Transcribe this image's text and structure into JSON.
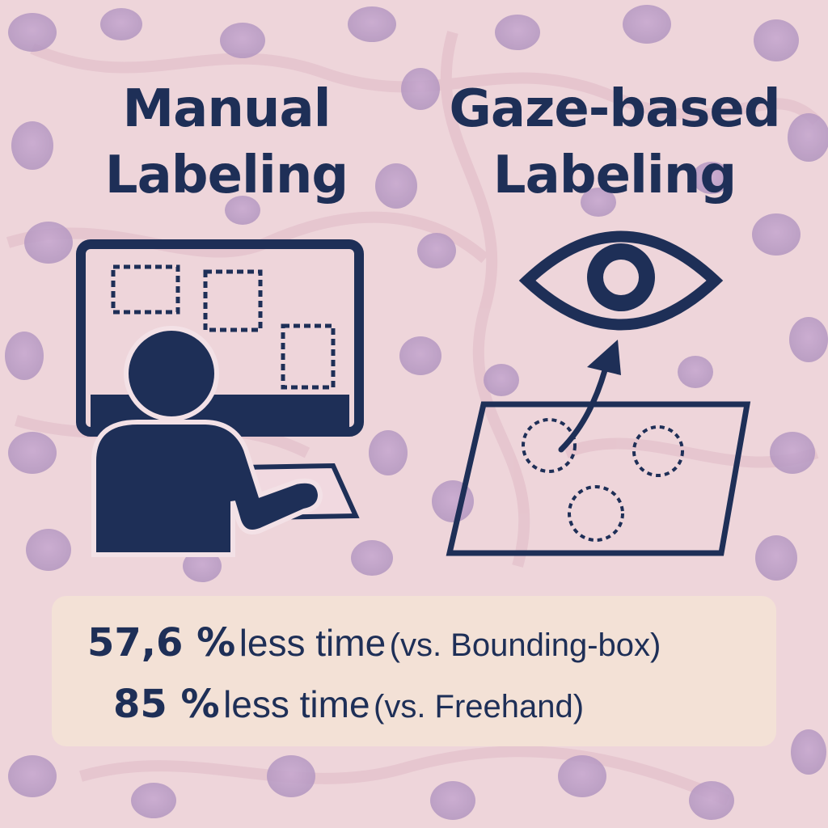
{
  "titles": {
    "manual": [
      "Manual",
      "Labeling"
    ],
    "gaze": [
      "Gaze-based",
      "Labeling"
    ]
  },
  "icons": {
    "manual": "person-at-computer-with-bounding-boxes",
    "gaze": "eye-looking-at-slide-with-circles"
  },
  "stats": [
    {
      "value": "57,6 %",
      "text": "less time",
      "note": "(vs. Bounding-box)"
    },
    {
      "value": "85 %",
      "text": "less time",
      "note": "(vs. Freehand)"
    }
  ],
  "colors": {
    "ink": "#1e2f57",
    "background": "#eed5da",
    "cell_nuclei": "#b99ac4",
    "stats_panel": "#f3e1d6"
  }
}
